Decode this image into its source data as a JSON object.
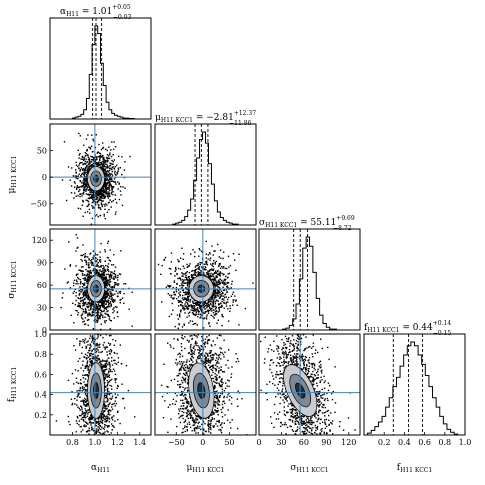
{
  "chart_data": {
    "type": "corner",
    "parameters": [
      {
        "key": "alpha_H11",
        "axis_label": "α",
        "axis_label_sub": "H11",
        "title_prefix": "α",
        "title_sub": "H11",
        "title_value": " = 1.01",
        "title_plus": "+0.05",
        "title_minus": "−0.03",
        "median": 1.01,
        "q_low": 0.98,
        "q_high": 1.06,
        "truth": 1.0,
        "range": [
          0.6,
          1.5
        ],
        "ticks": [
          0.8,
          1.0,
          1.2,
          1.4
        ],
        "tick_labels": [
          "0.8",
          "1.0",
          "1.2",
          "1.4"
        ],
        "histogram": [
          0,
          0,
          0,
          0,
          0,
          0,
          0,
          0,
          1,
          2,
          3,
          5,
          10,
          22,
          48,
          80,
          100,
          92,
          60,
          36,
          18,
          10,
          6,
          4,
          3,
          2,
          1,
          1,
          0.5,
          0.5,
          0,
          0,
          0,
          0,
          0,
          0
        ]
      },
      {
        "key": "mu_H11_KCC1",
        "axis_label": "μ",
        "axis_label_sub": "H11 KCC1",
        "title_prefix": "μ",
        "title_sub": "H11 KCC1",
        "title_value": " = −2.81",
        "title_plus": "+12.37",
        "title_minus": "−11.86",
        "median": -2.81,
        "q_low": -14.67,
        "q_high": 9.56,
        "truth": 0,
        "range": [
          -90,
          100
        ],
        "ticks": [
          -50,
          0,
          50
        ],
        "tick_labels": [
          "−50",
          "0",
          "50"
        ],
        "histogram": [
          0,
          0,
          0,
          0,
          0,
          0,
          1,
          2,
          3,
          5,
          9,
          16,
          28,
          48,
          72,
          92,
          100,
          88,
          66,
          44,
          26,
          14,
          8,
          5,
          3,
          2,
          1,
          1,
          0,
          0,
          0,
          0,
          0,
          0
        ]
      },
      {
        "key": "sigma_H11_KCC1",
        "axis_label": "σ",
        "axis_label_sub": "H11 KCC1",
        "title_prefix": "σ",
        "title_sub": "H11 KCC1",
        "title_value": " = 55.11",
        "title_plus": "+9.69",
        "title_minus": "−8.72",
        "median": 55.11,
        "q_low": 46.39,
        "q_high": 64.8,
        "truth": 55,
        "range": [
          0,
          135
        ],
        "ticks": [
          0,
          30,
          60,
          90,
          120
        ],
        "tick_labels": [
          "0",
          "30",
          "60",
          "90",
          "120"
        ],
        "histogram": [
          0,
          0,
          0,
          0,
          0,
          0,
          0,
          1,
          2,
          5,
          12,
          28,
          55,
          88,
          100,
          90,
          62,
          34,
          16,
          7,
          3,
          1,
          1,
          0,
          0,
          0,
          0,
          0,
          0,
          0
        ]
      },
      {
        "key": "f_H11_KCC1",
        "axis_label": "f",
        "axis_label_sub": "H11 KCC1",
        "title_prefix": "f",
        "title_sub": "H11 KCC1",
        "title_value": " = 0.44",
        "title_plus": "+0.14",
        "title_minus": "−0.15",
        "median": 0.44,
        "q_low": 0.29,
        "q_high": 0.58,
        "truth": 0.42,
        "range": [
          0.0,
          1.0
        ],
        "ticks": [
          0.2,
          0.4,
          0.6,
          0.8,
          1.0
        ],
        "tick_labels": [
          "0.2",
          "0.4",
          "0.6",
          "0.8",
          "1.0"
        ],
        "y_ticks": [
          0.2,
          0.4,
          0.6,
          0.8,
          1.0
        ],
        "y_tick_labels": [
          "0.2",
          "0.4",
          "0.6",
          "0.8",
          "1.0"
        ],
        "histogram": [
          0,
          2,
          5,
          9,
          14,
          20,
          30,
          40,
          52,
          62,
          74,
          86,
          96,
          100,
          96,
          86,
          76,
          64,
          52,
          40,
          30,
          20,
          12,
          6,
          3,
          1,
          0,
          0
        ]
      }
    ],
    "colors": {
      "truth_line": "#4682b4",
      "scatter": "#000000",
      "contour_inner": "#1e3040",
      "contour_mid": "#7d8a96",
      "contour_outer": "#c8ccd0",
      "histogram": "#000000"
    }
  }
}
